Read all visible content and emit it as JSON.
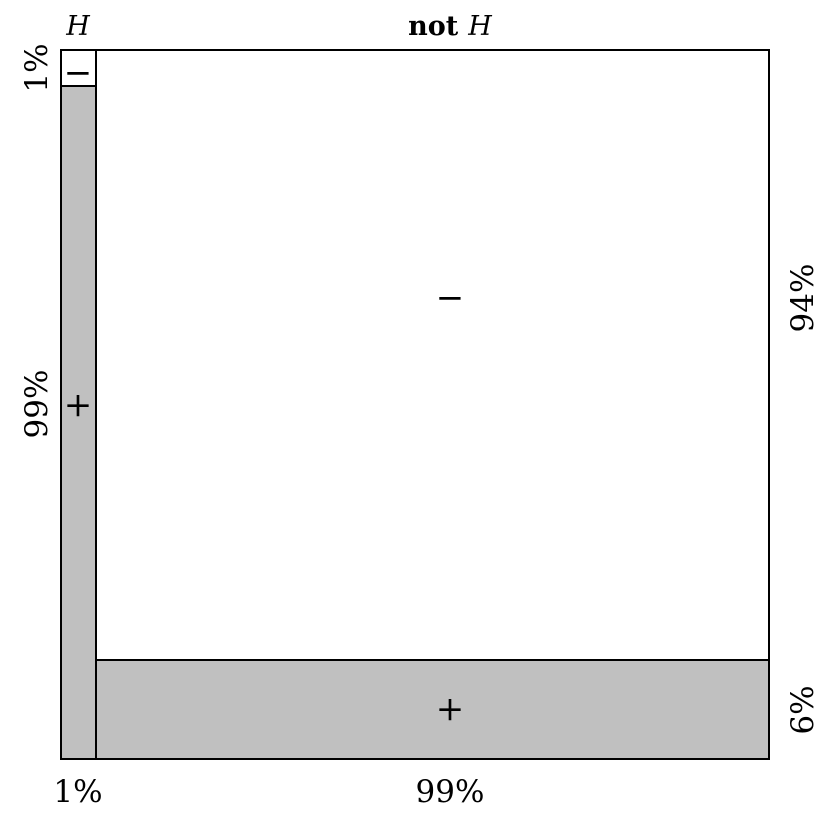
{
  "colors": {
    "positive_fill": "#c0c0c0",
    "negative_fill": "#ffffff",
    "stroke": "#000000"
  },
  "headers": {
    "h_letter": "H",
    "not_word": "not",
    "not_letter": "H"
  },
  "column_labels": {
    "h": "1%",
    "not_h": "99%"
  },
  "row_labels": {
    "h_negative": "1%",
    "h_positive": "99%",
    "not_h_negative": "94%",
    "not_h_positive": "6%"
  },
  "cells": {
    "h_negative": "−",
    "h_positive": "+",
    "not_h_negative": "−",
    "not_h_positive": "+"
  },
  "chart_data": {
    "type": "mosaic",
    "columns": [
      {
        "header": "H",
        "share": 0.01,
        "label": "1%",
        "segments": [
          {
            "sign": "−",
            "share": 0.01,
            "label": "1%"
          },
          {
            "sign": "+",
            "share": 0.99,
            "label": "99%"
          }
        ]
      },
      {
        "header": "not H",
        "share": 0.99,
        "label": "99%",
        "segments": [
          {
            "sign": "−",
            "share": 0.94,
            "label": "94%"
          },
          {
            "sign": "+",
            "share": 0.06,
            "label": "6%"
          }
        ]
      }
    ]
  }
}
